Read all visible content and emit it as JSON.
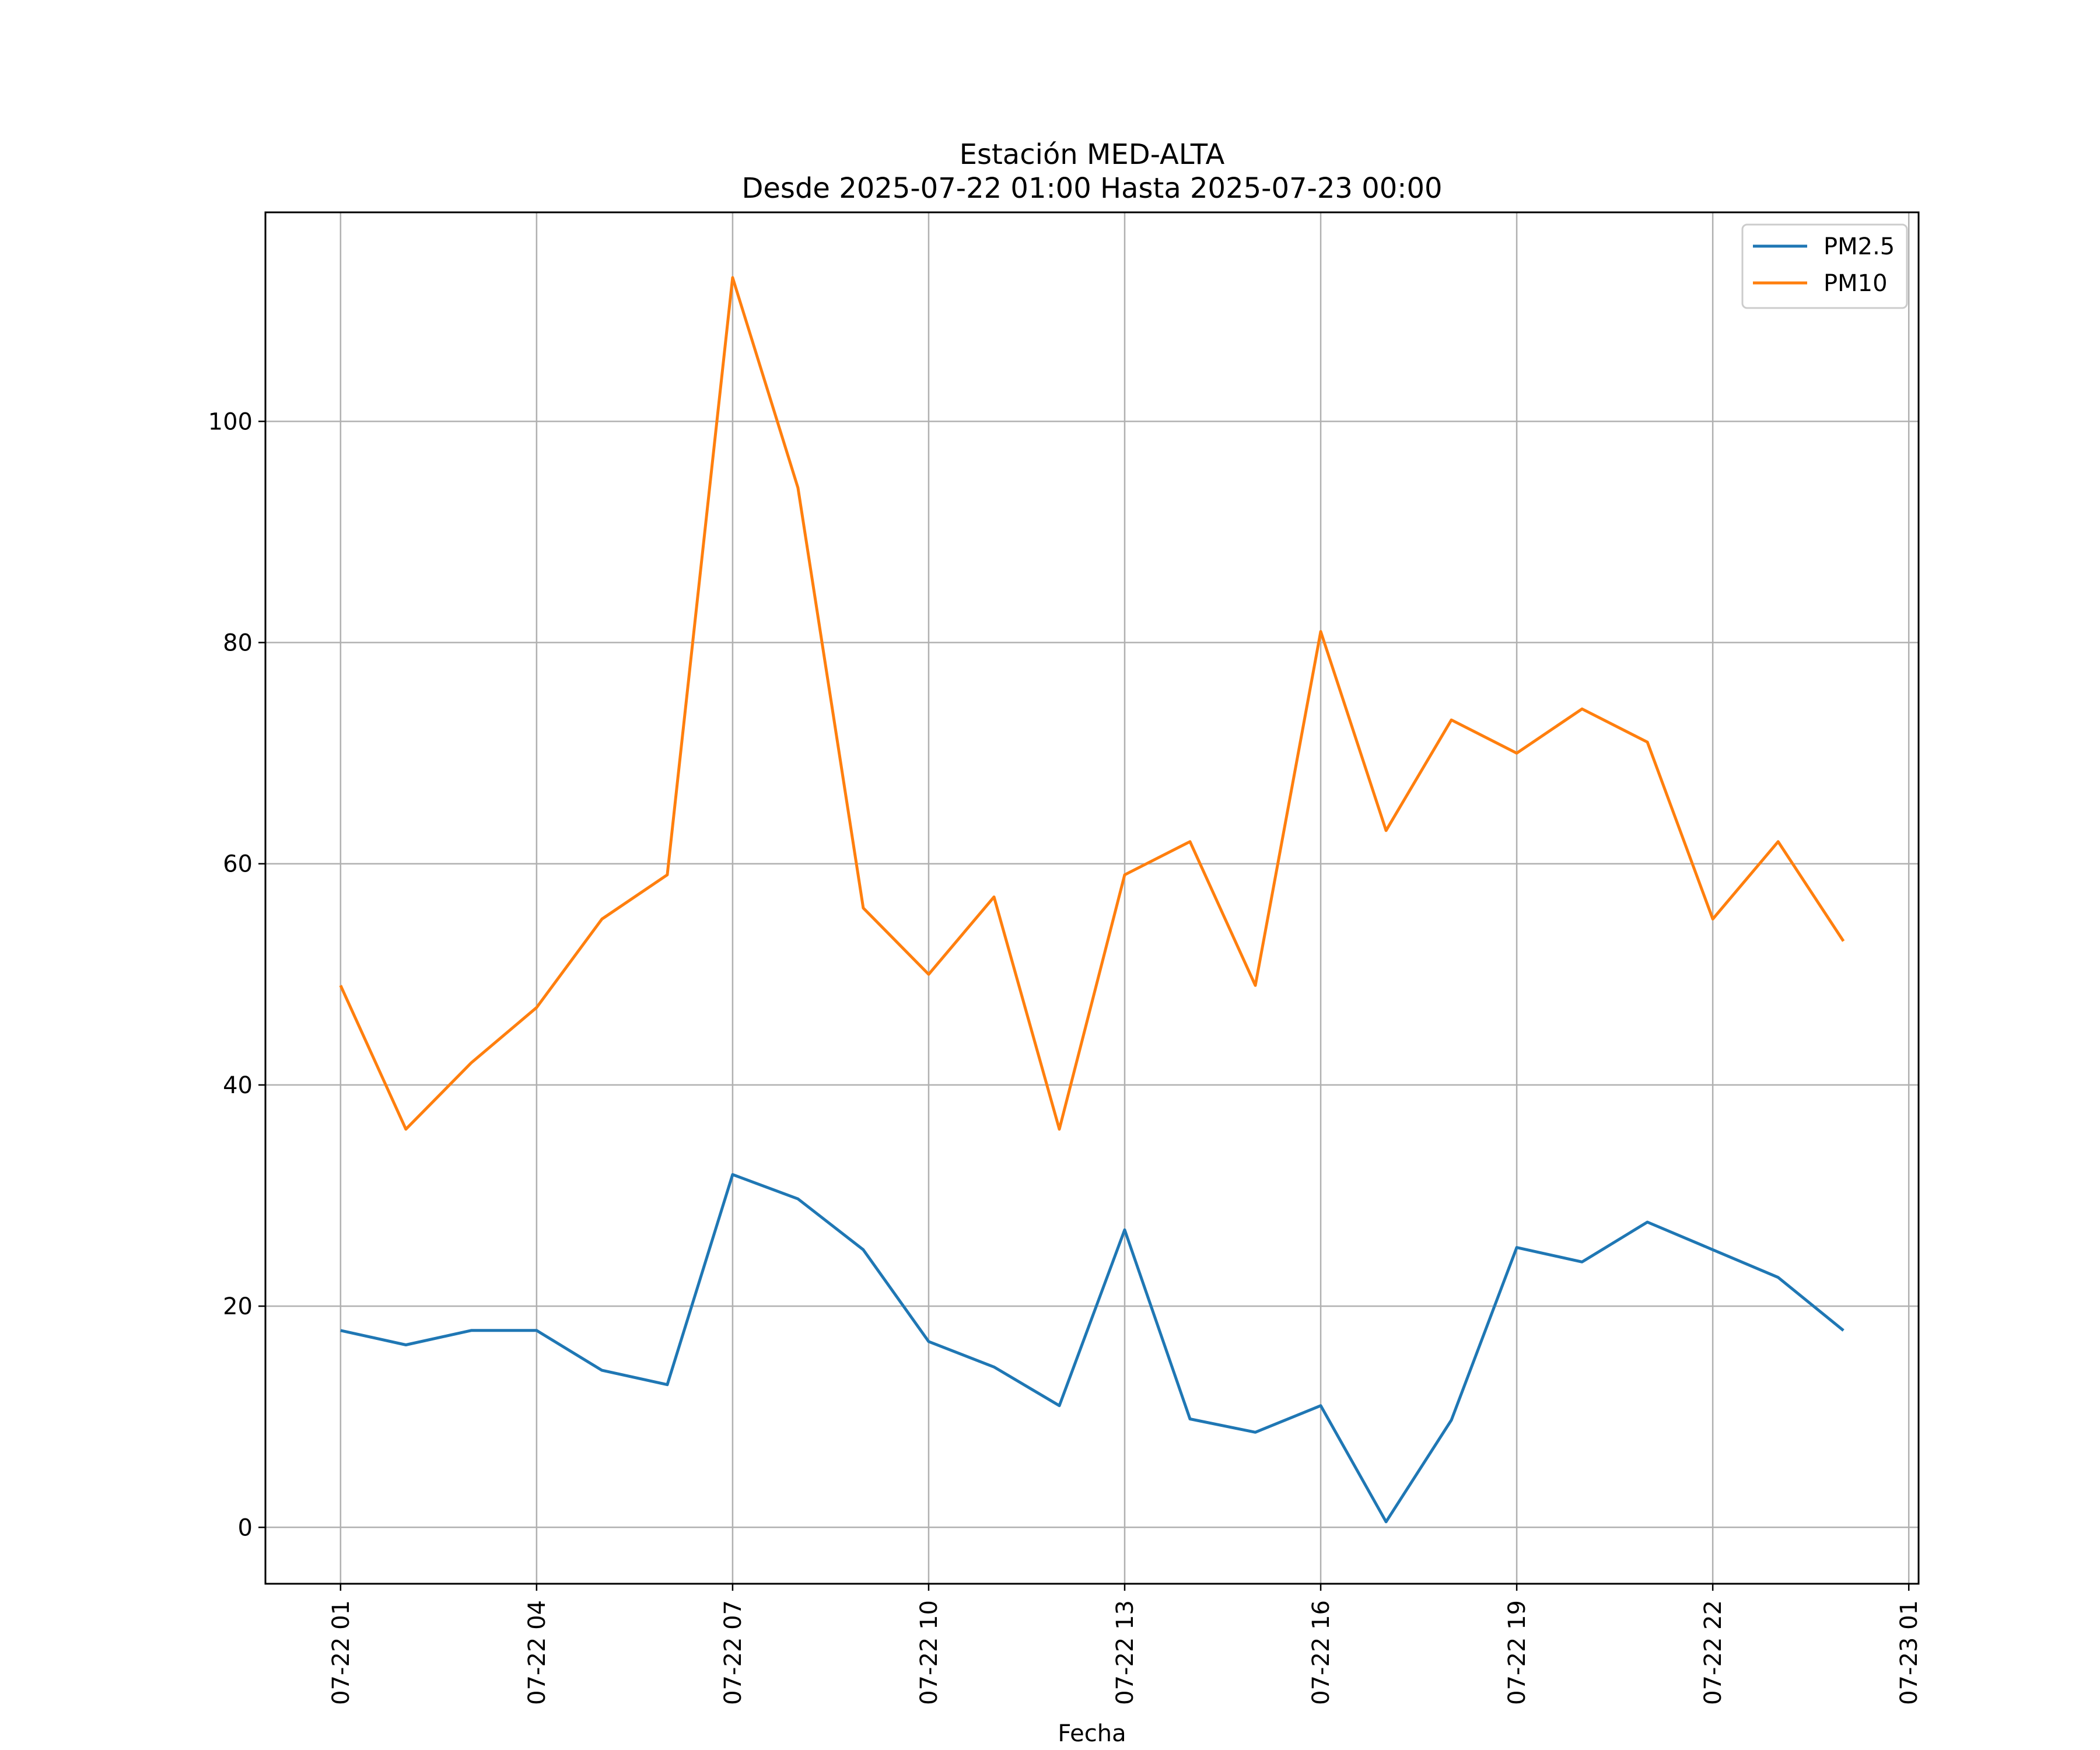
{
  "chart_data": {
    "type": "line",
    "title": "Estación MED-ALTA",
    "subtitle": "Desde 2025-07-22 01:00 Hasta 2025-07-23 00:00",
    "xlabel": "Fecha",
    "ylabel": "",
    "x": [
      "07-22 01",
      "07-22 02",
      "07-22 03",
      "07-22 04",
      "07-22 05",
      "07-22 06",
      "07-22 07",
      "07-22 08",
      "07-22 09",
      "07-22 10",
      "07-22 11",
      "07-22 12",
      "07-22 13",
      "07-22 14",
      "07-22 15",
      "07-22 16",
      "07-22 17",
      "07-22 18",
      "07-22 19",
      "07-22 20",
      "07-22 21",
      "07-22 22",
      "07-22 23",
      "07-23 00"
    ],
    "x_ticks": [
      "07-22 01",
      "07-22 04",
      "07-22 07",
      "07-22 10",
      "07-22 13",
      "07-22 16",
      "07-22 19",
      "07-22 22",
      "07-23 01"
    ],
    "y_ticks": [
      0,
      20,
      40,
      60,
      80,
      100
    ],
    "ylim": [
      -5.1,
      118.9
    ],
    "xlim_hours": [
      -1.15,
      24.15
    ],
    "grid": true,
    "legend_position": "top-right",
    "series": [
      {
        "name": "PM2.5",
        "color": "#1f77b4",
        "values": [
          17.8,
          16.5,
          17.8,
          17.8,
          14.2,
          12.9,
          31.9,
          29.7,
          25.1,
          16.8,
          14.5,
          11.0,
          26.9,
          9.8,
          8.6,
          11.0,
          0.5,
          9.7,
          25.3,
          24.0,
          27.6,
          25.1,
          22.6,
          17.8
        ]
      },
      {
        "name": "PM10",
        "color": "#ff7f0e",
        "values": [
          49,
          36,
          42,
          47,
          55,
          59,
          113,
          94,
          56,
          50,
          57,
          36,
          59,
          62,
          49,
          81,
          63,
          73,
          70,
          74,
          71,
          55,
          62,
          53
        ]
      }
    ]
  }
}
